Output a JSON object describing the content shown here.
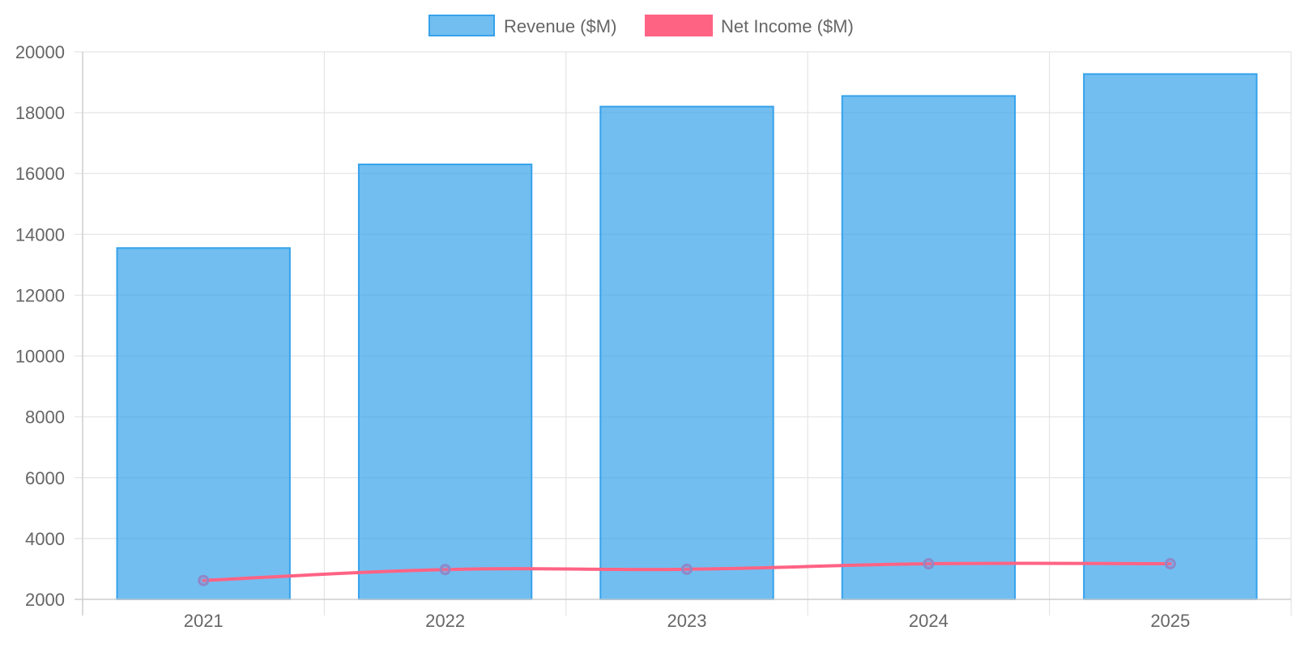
{
  "chart_data": {
    "type": "bar",
    "categories": [
      "2021",
      "2022",
      "2023",
      "2024",
      "2025"
    ],
    "series": [
      {
        "name": "Revenue ($M)",
        "type": "bar",
        "values": [
          13550,
          16300,
          18200,
          18550,
          19270
        ],
        "color": "#36A2EB",
        "fill_color": "rgba(54,162,235,0.7)"
      },
      {
        "name": "Net Income ($M)",
        "type": "line",
        "values": [
          2620,
          2980,
          2990,
          3170,
          3170
        ],
        "color": "#FF6384",
        "point_color": "#8E88C8"
      }
    ],
    "xlabel": "",
    "ylabel": "",
    "ylim": [
      2000,
      20000
    ],
    "yticks": [
      2000,
      4000,
      6000,
      8000,
      10000,
      12000,
      14000,
      16000,
      18000,
      20000
    ],
    "ytick_labels": [
      "2000",
      "4000",
      "6000",
      "8000",
      "10000",
      "12000",
      "14000",
      "16000",
      "18000",
      "20000"
    ],
    "grid": true,
    "legend_position": "top-center"
  }
}
